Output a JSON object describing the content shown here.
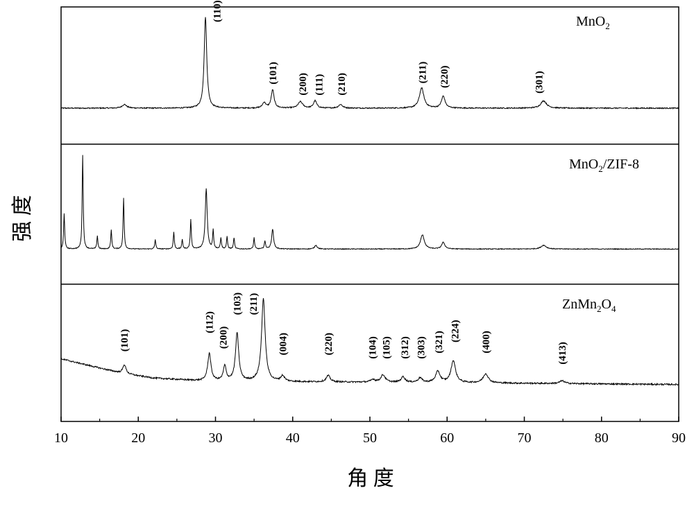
{
  "chart_data": {
    "type": "line",
    "xlabel": "角 度",
    "ylabel": "强 度",
    "xlim": [
      10,
      90
    ],
    "xticks": [
      10,
      20,
      30,
      40,
      50,
      60,
      70,
      80,
      90
    ],
    "panels": [
      {
        "name": "MnO2",
        "label_main": "MnO",
        "label_parts": [
          {
            "t": "MnO",
            "sub": false
          },
          {
            "t": "2",
            "sub": true
          }
        ],
        "baseline": 0.03,
        "noise": 0.006,
        "background": [
          [
            10,
            0.03
          ],
          [
            90,
            0.03
          ]
        ],
        "peaks": [
          {
            "x": 18.2,
            "h": 0.04,
            "w": 0.35
          },
          {
            "x": 28.7,
            "h": 1.0,
            "w": 0.2
          },
          {
            "x": 36.3,
            "h": 0.06,
            "w": 0.25
          },
          {
            "x": 37.4,
            "h": 0.2,
            "w": 0.22
          },
          {
            "x": 41.0,
            "h": 0.07,
            "w": 0.35
          },
          {
            "x": 42.9,
            "h": 0.08,
            "w": 0.25
          },
          {
            "x": 46.2,
            "h": 0.04,
            "w": 0.3
          },
          {
            "x": 56.7,
            "h": 0.22,
            "w": 0.35
          },
          {
            "x": 59.5,
            "h": 0.13,
            "w": 0.28
          },
          {
            "x": 72.5,
            "h": 0.08,
            "w": 0.45
          }
        ],
        "annotations": [
          {
            "label": "(110)",
            "x": 30.2,
            "y": 0.97
          },
          {
            "label": "(101)",
            "x": 37.4,
            "y": 0.29
          },
          {
            "label": "(200)",
            "x": 41.3,
            "y": 0.17
          },
          {
            "label": "(111)",
            "x": 43.4,
            "y": 0.17
          },
          {
            "label": "(210)",
            "x": 46.3,
            "y": 0.17
          },
          {
            "label": "(211)",
            "x": 56.8,
            "y": 0.3
          },
          {
            "label": "(220)",
            "x": 59.6,
            "y": 0.25
          },
          {
            "label": "(301)",
            "x": 71.9,
            "y": 0.19
          }
        ]
      },
      {
        "name": "MnO2/ZIF-8",
        "label_parts": [
          {
            "t": "MnO",
            "sub": false
          },
          {
            "t": "2",
            "sub": true
          },
          {
            "t": "/ZIF-8",
            "sub": false
          }
        ],
        "baseline": 0.02,
        "noise": 0.004,
        "background": [
          [
            10,
            0.02
          ],
          [
            90,
            0.02
          ]
        ],
        "peaks": [
          {
            "x": 10.4,
            "h": 0.38,
            "w": 0.08
          },
          {
            "x": 12.8,
            "h": 1.0,
            "w": 0.08
          },
          {
            "x": 14.7,
            "h": 0.14,
            "w": 0.08
          },
          {
            "x": 16.5,
            "h": 0.2,
            "w": 0.08
          },
          {
            "x": 18.1,
            "h": 0.54,
            "w": 0.08
          },
          {
            "x": 22.2,
            "h": 0.1,
            "w": 0.08
          },
          {
            "x": 24.6,
            "h": 0.18,
            "w": 0.08
          },
          {
            "x": 25.7,
            "h": 0.1,
            "w": 0.08
          },
          {
            "x": 26.8,
            "h": 0.31,
            "w": 0.08
          },
          {
            "x": 28.8,
            "h": 0.64,
            "w": 0.15
          },
          {
            "x": 29.7,
            "h": 0.2,
            "w": 0.08
          },
          {
            "x": 30.7,
            "h": 0.12,
            "w": 0.08
          },
          {
            "x": 31.5,
            "h": 0.13,
            "w": 0.08
          },
          {
            "x": 32.4,
            "h": 0.12,
            "w": 0.08
          },
          {
            "x": 35.0,
            "h": 0.12,
            "w": 0.08
          },
          {
            "x": 36.4,
            "h": 0.08,
            "w": 0.1
          },
          {
            "x": 37.4,
            "h": 0.21,
            "w": 0.15
          },
          {
            "x": 43.0,
            "h": 0.04,
            "w": 0.2
          },
          {
            "x": 56.8,
            "h": 0.15,
            "w": 0.3
          },
          {
            "x": 59.5,
            "h": 0.07,
            "w": 0.25
          },
          {
            "x": 72.5,
            "h": 0.04,
            "w": 0.4
          }
        ],
        "annotations": []
      },
      {
        "name": "ZnMn2O4",
        "label_parts": [
          {
            "t": "ZnMn",
            "sub": false
          },
          {
            "t": "2",
            "sub": true
          },
          {
            "t": "O",
            "sub": false
          },
          {
            "t": "4",
            "sub": true
          }
        ],
        "baseline": 0.06,
        "noise": 0.008,
        "background": [
          [
            10,
            0.32
          ],
          [
            14,
            0.24
          ],
          [
            18,
            0.16
          ],
          [
            22,
            0.11
          ],
          [
            28,
            0.08
          ],
          [
            40,
            0.07
          ],
          [
            60,
            0.06
          ],
          [
            90,
            0.04
          ]
        ],
        "peaks": [
          {
            "x": 18.2,
            "h": 0.1,
            "w": 0.25
          },
          {
            "x": 29.2,
            "h": 0.3,
            "w": 0.25
          },
          {
            "x": 31.2,
            "h": 0.16,
            "w": 0.22
          },
          {
            "x": 32.8,
            "h": 0.52,
            "w": 0.25
          },
          {
            "x": 36.2,
            "h": 0.9,
            "w": 0.28
          },
          {
            "x": 38.7,
            "h": 0.06,
            "w": 0.3
          },
          {
            "x": 44.6,
            "h": 0.07,
            "w": 0.3
          },
          {
            "x": 50.4,
            "h": 0.03,
            "w": 0.3
          },
          {
            "x": 51.7,
            "h": 0.08,
            "w": 0.35
          },
          {
            "x": 54.3,
            "h": 0.06,
            "w": 0.3
          },
          {
            "x": 56.5,
            "h": 0.05,
            "w": 0.3
          },
          {
            "x": 58.8,
            "h": 0.12,
            "w": 0.35
          },
          {
            "x": 60.8,
            "h": 0.24,
            "w": 0.35
          },
          {
            "x": 65.0,
            "h": 0.1,
            "w": 0.4
          },
          {
            "x": 74.9,
            "h": 0.03,
            "w": 0.4
          }
        ],
        "annotations": [
          {
            "label": "(101)",
            "x": 18.2,
            "y": 0.4
          },
          {
            "label": "(112)",
            "x": 29.2,
            "y": 0.6
          },
          {
            "label": "(200)",
            "x": 31.0,
            "y": 0.43
          },
          {
            "label": "(103)",
            "x": 32.8,
            "y": 0.8
          },
          {
            "label": "(211)",
            "x": 34.9,
            "y": 0.8
          },
          {
            "label": "(004)",
            "x": 38.7,
            "y": 0.36
          },
          {
            "label": "(220)",
            "x": 44.6,
            "y": 0.36
          },
          {
            "label": "(104)",
            "x": 50.3,
            "y": 0.32
          },
          {
            "label": "(105)",
            "x": 52.1,
            "y": 0.32
          },
          {
            "label": "(312)",
            "x": 54.5,
            "y": 0.32
          },
          {
            "label": "(303)",
            "x": 56.6,
            "y": 0.32
          },
          {
            "label": "(321)",
            "x": 58.9,
            "y": 0.38
          },
          {
            "label": "(224)",
            "x": 61.0,
            "y": 0.5
          },
          {
            "label": "(400)",
            "x": 65.0,
            "y": 0.38
          },
          {
            "label": "(413)",
            "x": 74.9,
            "y": 0.26
          }
        ]
      }
    ]
  }
}
